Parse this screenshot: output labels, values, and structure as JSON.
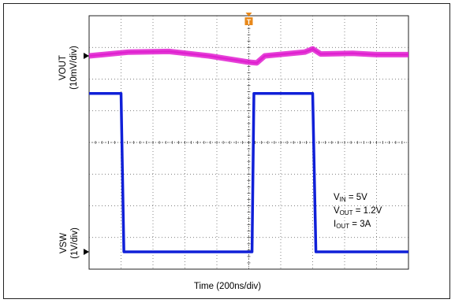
{
  "chart_data": {
    "type": "line",
    "title": "",
    "xlabel": "Time (200ns/div)",
    "grid": true,
    "x_divisions": 10,
    "y_divisions": 8,
    "x_per_div_ns": 200,
    "series": [
      {
        "name": "VOUT",
        "axis_label_line1": "VOUT",
        "axis_label_line2": "(10mV/div)",
        "color": "#e020d0",
        "style": "thick noisy ac-coupled ripple",
        "points_ns": [
          [
            0,
            0.0
          ],
          [
            250,
            0.6
          ],
          [
            500,
            0.7
          ],
          [
            750,
            0.0
          ],
          [
            1000,
            -1.0
          ],
          [
            1050,
            -1.1
          ],
          [
            1100,
            0.0
          ],
          [
            1350,
            0.6
          ],
          [
            1400,
            1.1
          ],
          [
            1450,
            0.3
          ],
          [
            1650,
            0.4
          ],
          [
            1800,
            0.2
          ],
          [
            2000,
            0.2
          ]
        ]
      },
      {
        "name": "VSW",
        "axis_label_line1": "VSW",
        "axis_label_line2": "(1V/div)",
        "color": "#1020d8",
        "style": "square wave",
        "high_v": 5,
        "low_v": 0,
        "points_ns": [
          [
            0,
            5.0
          ],
          [
            200,
            5.0
          ],
          [
            218,
            0.0
          ],
          [
            1020,
            0.0
          ],
          [
            1032,
            5.0
          ],
          [
            1400,
            5.0
          ],
          [
            1420,
            0.0
          ],
          [
            2000,
            0.0
          ]
        ]
      }
    ],
    "annotations": {
      "vin": "= 5V",
      "vout": "= 1.2V",
      "iout": "= 3A"
    },
    "markers": {
      "trigger": "T"
    }
  },
  "colors": {
    "trace_vout": "#e020d0",
    "trace_vsw": "#1020d8",
    "trigger_marker": "#e8881a",
    "grid": "#555555"
  }
}
